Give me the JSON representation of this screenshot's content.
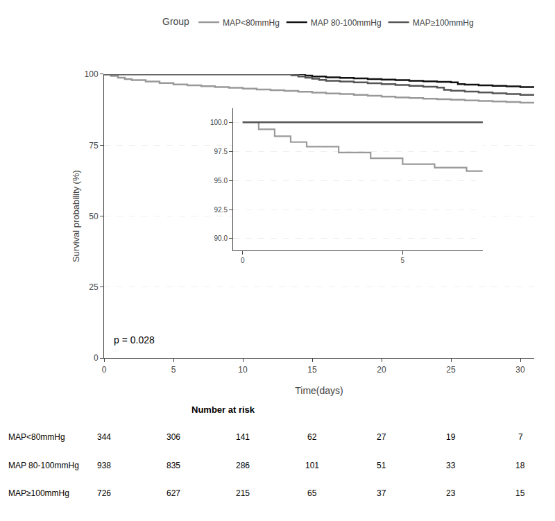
{
  "chart_data": {
    "type": "line",
    "line_style": "step",
    "xlabel": "Time(days)",
    "ylabel": "Survival probability (%)",
    "legend_title": "Group",
    "legend": "top",
    "grid": "y",
    "annotations": [
      {
        "text": "p = 0.028"
      }
    ],
    "xlim": [
      0,
      31
    ],
    "ylim": [
      0,
      100
    ],
    "xticks": [
      0,
      5,
      10,
      15,
      20,
      25,
      30
    ],
    "yticks": [
      0,
      25,
      50,
      75,
      100
    ],
    "series": [
      {
        "name": "MAP<80mmHg",
        "color": "#999999",
        "x": [
          0,
          0.5,
          1,
          1.5,
          2,
          3,
          4,
          5,
          6,
          7,
          8,
          9,
          10,
          11,
          12,
          13,
          14,
          15,
          16,
          17,
          18,
          19,
          20,
          21,
          22,
          23,
          24,
          25,
          26,
          27,
          28,
          29,
          30,
          31
        ],
        "values": [
          100,
          99.4,
          98.8,
          98.3,
          97.9,
          97.4,
          96.9,
          96.4,
          96.1,
          95.8,
          95.5,
          95.2,
          94.9,
          94.6,
          94.4,
          94.1,
          93.8,
          93.5,
          93.2,
          93.0,
          92.7,
          92.4,
          92.1,
          91.8,
          91.6,
          91.4,
          91.2,
          91.0,
          90.8,
          90.6,
          90.4,
          90.2,
          90.0,
          89.8
        ]
      },
      {
        "name": "MAP 80-100mmHg",
        "color": "#111111",
        "x": [
          0,
          1,
          2,
          3,
          4,
          5,
          6,
          7,
          8,
          9,
          10,
          11,
          12,
          13,
          14,
          14.5,
          15,
          16,
          17,
          18,
          19,
          20,
          21,
          22,
          23,
          24,
          25,
          25.5,
          26,
          27,
          28,
          29,
          30,
          31
        ],
        "values": [
          100,
          100,
          100,
          100,
          100,
          100,
          100,
          100,
          100,
          100,
          100,
          100,
          100,
          100,
          100,
          99.5,
          99.2,
          98.9,
          98.7,
          98.5,
          98.3,
          98.1,
          97.9,
          97.7,
          97.5,
          97.3,
          97.1,
          96.5,
          96.3,
          96.1,
          95.9,
          95.7,
          95.5,
          95.3
        ]
      },
      {
        "name": "MAP≥100mmHg",
        "color": "#555555",
        "x": [
          0,
          1,
          2,
          3,
          4,
          5,
          6,
          7,
          8,
          9,
          10,
          11,
          12,
          13,
          13.5,
          14,
          14.5,
          15,
          15.5,
          16,
          17,
          18,
          19,
          20,
          21,
          22,
          23,
          24,
          24.5,
          25,
          26,
          27,
          28,
          29,
          30,
          31
        ],
        "values": [
          100,
          100,
          100,
          100,
          100,
          100,
          100,
          100,
          100,
          100,
          100,
          100,
          100,
          100,
          99.6,
          99.2,
          98.8,
          98.4,
          98.0,
          97.7,
          97.4,
          97.1,
          96.8,
          96.5,
          96.2,
          95.9,
          95.6,
          95.3,
          94.5,
          94.2,
          93.9,
          93.6,
          93.3,
          93.0,
          92.7,
          92.5
        ]
      }
    ],
    "inset": {
      "xlim": [
        -0.3,
        7.5
      ],
      "ylim": [
        89.0,
        101.2
      ],
      "xticks": [
        0,
        5
      ],
      "yticks": [
        {
          "value": 90.0,
          "label": "90.0"
        },
        {
          "value": 92.5,
          "label": "92.5"
        },
        {
          "value": 95.0,
          "label": "95.0"
        },
        {
          "value": 97.5,
          "label": "97.5"
        },
        {
          "value": 100.0,
          "label": "100.0"
        }
      ]
    },
    "number_at_risk": {
      "title": "Number at risk",
      "times": [
        0,
        5,
        10,
        15,
        20,
        25,
        30
      ],
      "rows": [
        {
          "name": "MAP<80mmHg",
          "values": [
            344,
            306,
            141,
            62,
            27,
            19,
            7
          ]
        },
        {
          "name": "MAP 80-100mmHg",
          "values": [
            938,
            835,
            286,
            101,
            51,
            33,
            18
          ]
        },
        {
          "name": "MAP≥100mmHg",
          "values": [
            726,
            627,
            215,
            65,
            37,
            23,
            15
          ]
        }
      ]
    }
  }
}
